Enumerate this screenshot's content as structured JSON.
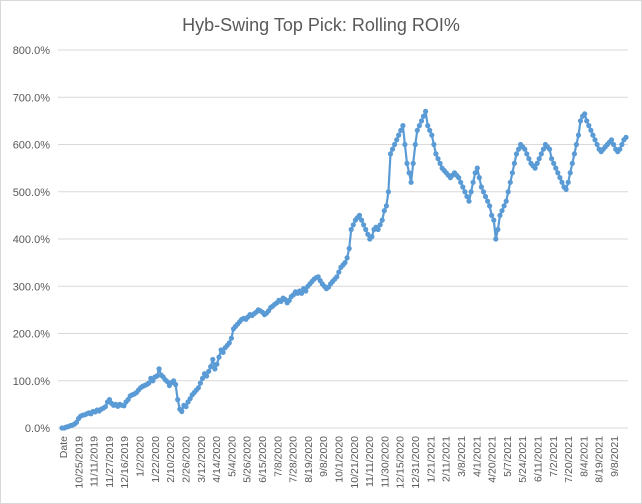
{
  "chart_data": {
    "type": "line",
    "title": "Hyb-Swing Top Pick: Rolling ROI%",
    "xlabel": "",
    "ylabel": "",
    "ylim": [
      0,
      800
    ],
    "y_ticks": [
      "0.0%",
      "100.0%",
      "200.0%",
      "300.0%",
      "400.0%",
      "500.0%",
      "600.0%",
      "700.0%",
      "800.0%"
    ],
    "x_ticks": [
      "Date",
      "10/25/2019",
      "11/11/2019",
      "11/27/2019",
      "12/16/2019",
      "1/2/2020",
      "1/22/2020",
      "2/10/2020",
      "2/26/2020",
      "3/12/2020",
      "4/14/2020",
      "5/4/2020",
      "5/26/2020",
      "6/15/2020",
      "7/8/2020",
      "7/28/2020",
      "8/19/2020",
      "9/8/2020",
      "10/1/2020",
      "10/21/2020",
      "11/11/2020",
      "11/30/2020",
      "12/15/2020",
      "12/31/2020",
      "1/21/2021",
      "2/11/2021",
      "3/8/2021",
      "4/1/2021",
      "4/20/2021",
      "5/7/2021",
      "5/24/2021",
      "6/11/2021",
      "7/2/2021",
      "7/20/2021",
      "8/4/2021",
      "8/19/2021",
      "9/8/2021"
    ],
    "grid": true,
    "legend": "none",
    "series_color": "#5b9bd5",
    "series": [
      {
        "values": [
          0,
          0,
          2,
          3,
          5,
          6,
          8,
          12,
          20,
          25,
          27,
          28,
          30,
          32,
          30,
          35,
          34,
          38,
          36,
          40,
          42,
          45,
          55,
          60,
          52,
          48,
          50,
          46,
          50,
          48,
          47,
          55,
          60,
          68,
          70,
          72,
          75,
          80,
          85,
          88,
          90,
          92,
          95,
          105,
          100,
          108,
          110,
          125,
          112,
          108,
          102,
          98,
          90,
          96,
          100,
          92,
          60,
          40,
          35,
          48,
          45,
          55,
          62,
          70,
          75,
          80,
          85,
          95,
          105,
          115,
          110,
          120,
          130,
          145,
          125,
          135,
          150,
          165,
          160,
          170,
          175,
          180,
          190,
          210,
          215,
          220,
          225,
          230,
          232,
          230,
          235,
          240,
          238,
          242,
          245,
          250,
          248,
          245,
          240,
          243,
          248,
          255,
          258,
          262,
          265,
          270,
          268,
          275,
          272,
          265,
          270,
          278,
          282,
          288,
          285,
          290,
          285,
          295,
          290,
          300,
          305,
          310,
          315,
          318,
          320,
          312,
          305,
          300,
          295,
          298,
          305,
          310,
          315,
          320,
          330,
          340,
          345,
          350,
          360,
          380,
          420,
          430,
          440,
          445,
          450,
          440,
          430,
          420,
          410,
          400,
          405,
          420,
          425,
          420,
          430,
          440,
          460,
          470,
          500,
          580,
          590,
          600,
          610,
          620,
          630,
          640,
          600,
          560,
          540,
          520,
          560,
          600,
          630,
          640,
          650,
          660,
          670,
          640,
          630,
          620,
          600,
          580,
          570,
          560,
          550,
          545,
          540,
          535,
          530,
          535,
          540,
          535,
          530,
          520,
          510,
          500,
          490,
          480,
          500,
          520,
          540,
          550,
          530,
          510,
          500,
          490,
          480,
          470,
          450,
          440,
          400,
          420,
          450,
          460,
          470,
          480,
          500,
          520,
          540,
          560,
          580,
          590,
          600,
          595,
          590,
          580,
          570,
          560,
          555,
          550,
          560,
          570,
          580,
          590,
          600,
          595,
          590,
          570,
          560,
          550,
          540,
          530,
          520,
          510,
          505,
          520,
          540,
          560,
          580,
          600,
          620,
          650,
          660,
          665,
          650,
          640,
          630,
          620,
          610,
          600,
          590,
          585,
          590,
          595,
          600,
          605,
          610,
          600,
          590,
          585,
          590,
          600,
          610,
          615
        ]
      }
    ]
  }
}
